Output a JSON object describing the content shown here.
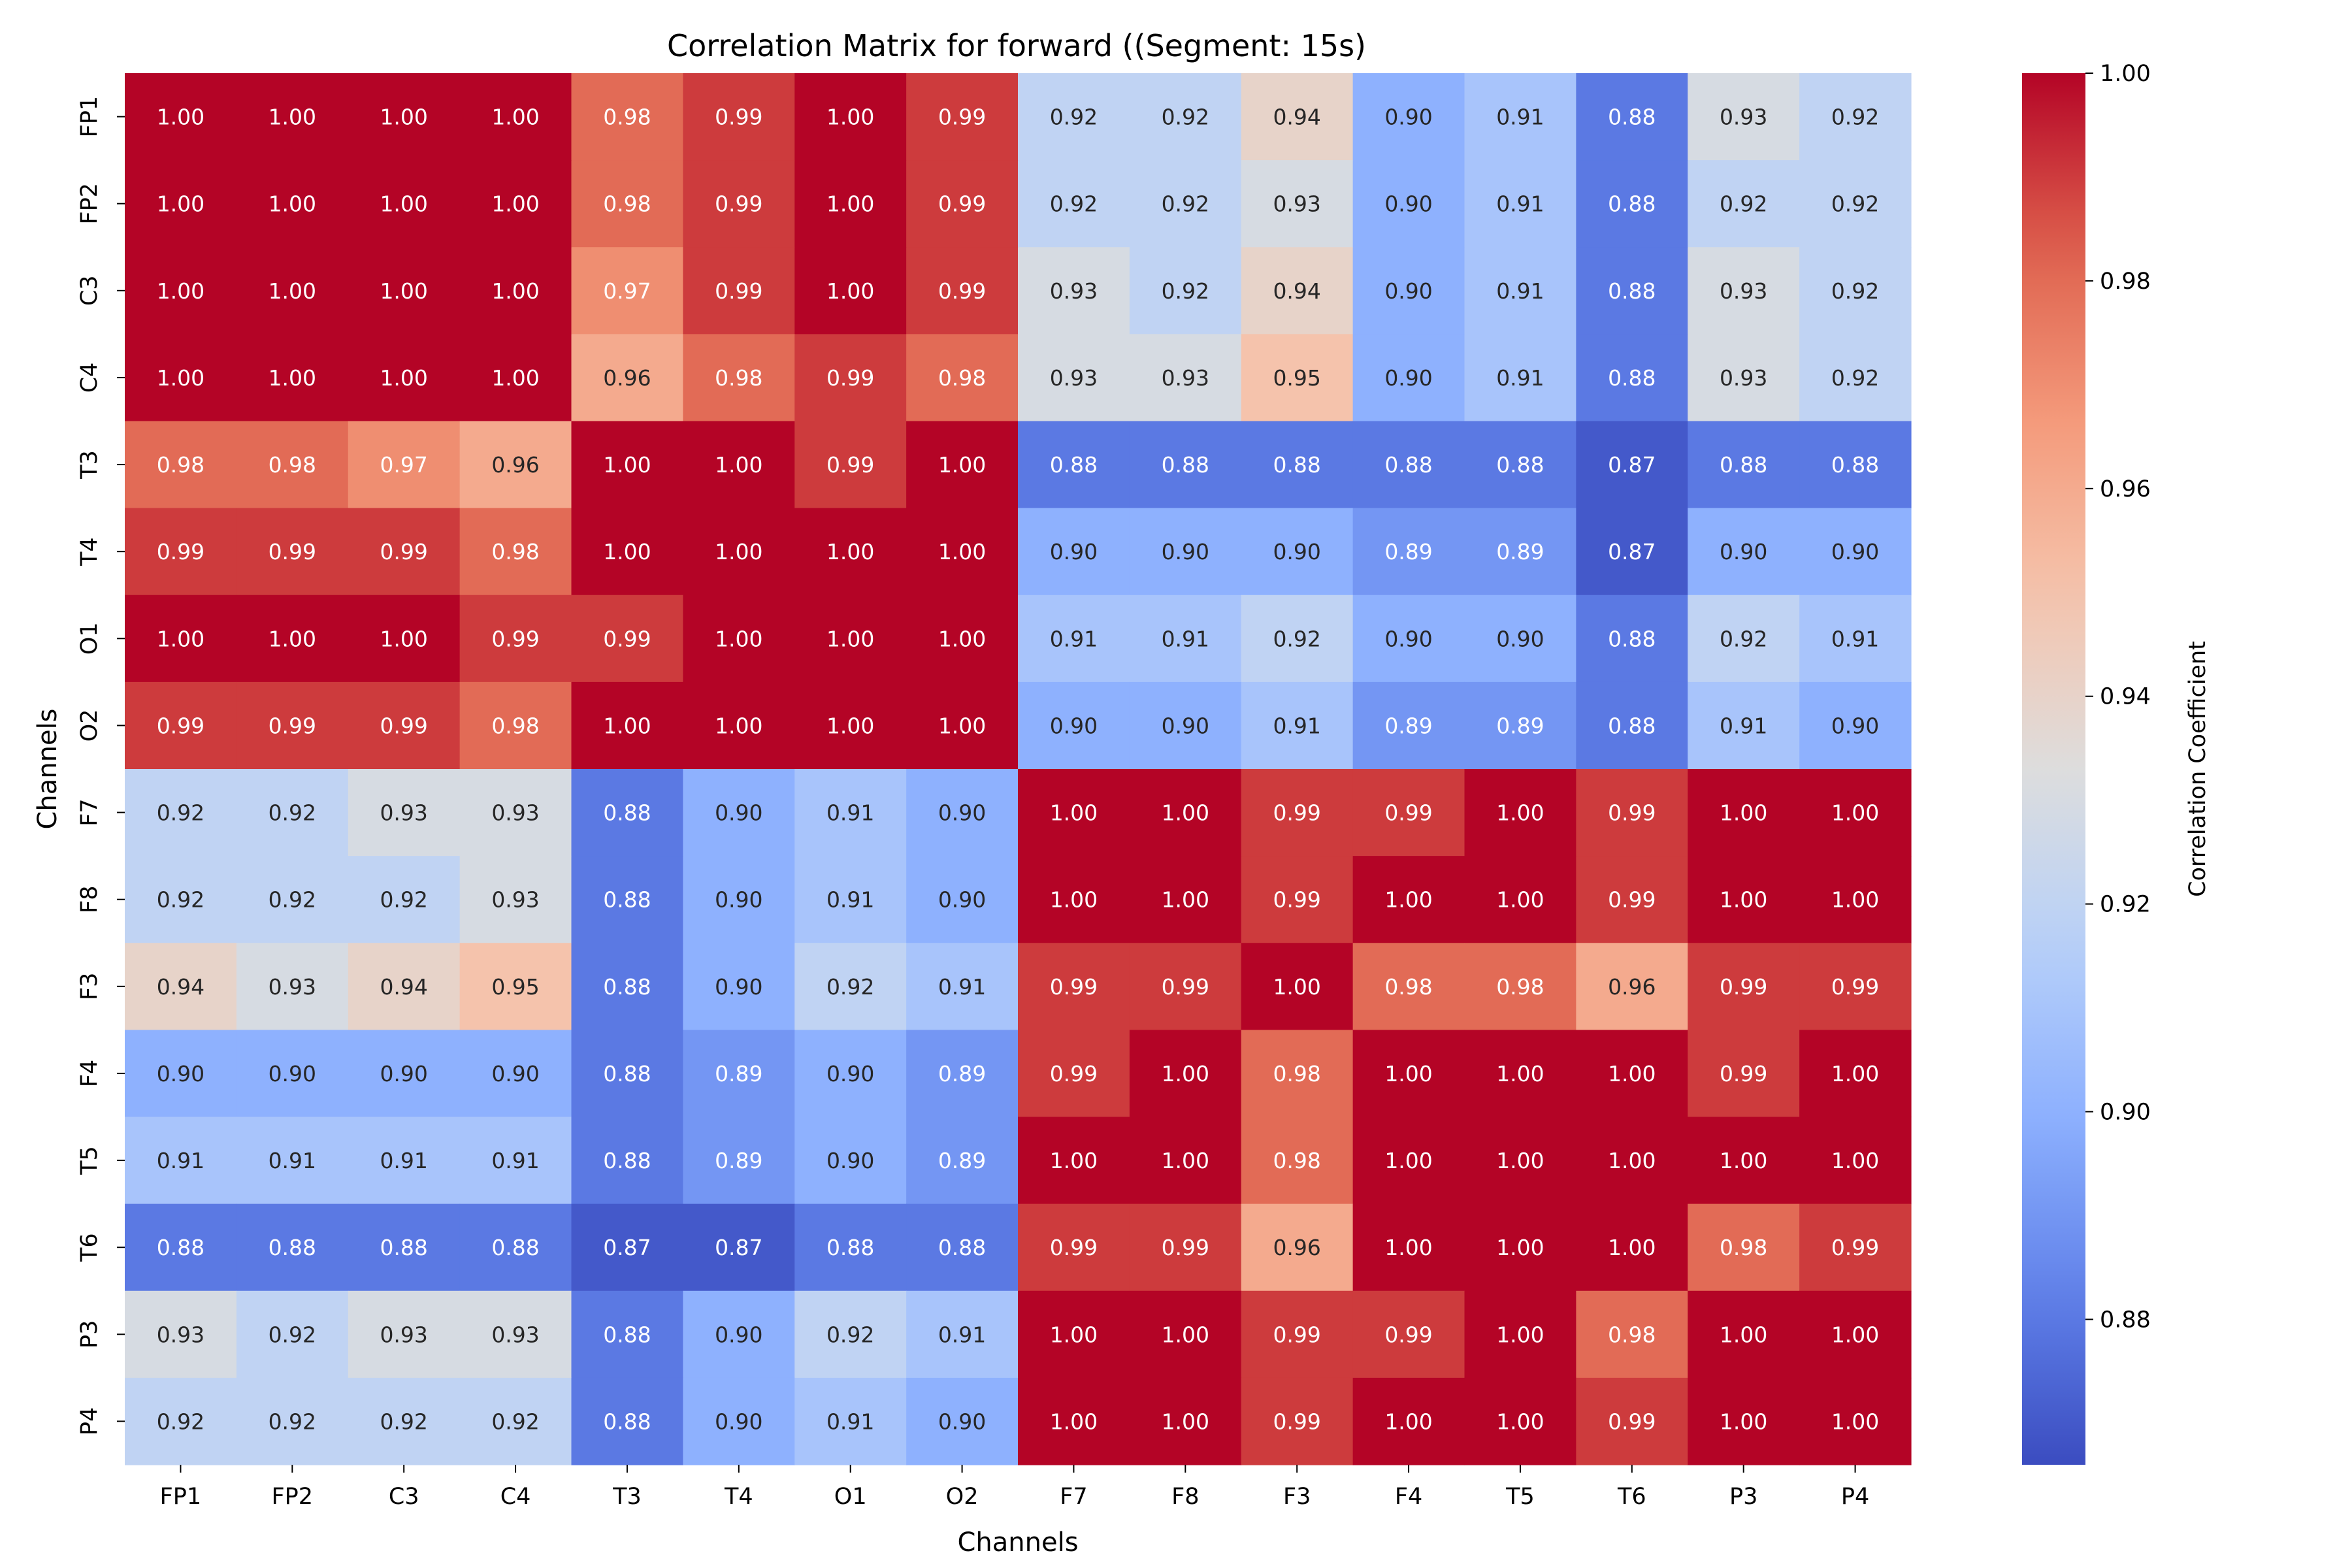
{
  "chart_data": {
    "type": "heatmap",
    "title": "Correlation Matrix for forward ((Segment: 15s)",
    "xlabel": "Channels",
    "ylabel": "Channels",
    "colorbar_label": "Correlation Coefficient",
    "colormap": "coolwarm",
    "color_range": [
      0.866,
      1.0
    ],
    "colorbar_ticks": [
      "0.88",
      "0.90",
      "0.92",
      "0.94",
      "0.96",
      "0.98",
      "1.00"
    ],
    "x_categories": [
      "FP1",
      "FP2",
      "C3",
      "C4",
      "T3",
      "T4",
      "O1",
      "O2",
      "F7",
      "F8",
      "F3",
      "F4",
      "T5",
      "T6",
      "P3",
      "P4"
    ],
    "y_categories": [
      "FP1",
      "FP2",
      "C3",
      "C4",
      "T3",
      "T4",
      "O1",
      "O2",
      "F7",
      "F8",
      "F3",
      "F4",
      "T5",
      "T6",
      "P3",
      "P4"
    ],
    "values": [
      [
        1.0,
        1.0,
        1.0,
        1.0,
        0.98,
        0.99,
        1.0,
        0.99,
        0.92,
        0.92,
        0.94,
        0.9,
        0.91,
        0.88,
        0.93,
        0.92
      ],
      [
        1.0,
        1.0,
        1.0,
        1.0,
        0.98,
        0.99,
        1.0,
        0.99,
        0.92,
        0.92,
        0.93,
        0.9,
        0.91,
        0.88,
        0.92,
        0.92
      ],
      [
        1.0,
        1.0,
        1.0,
        1.0,
        0.97,
        0.99,
        1.0,
        0.99,
        0.93,
        0.92,
        0.94,
        0.9,
        0.91,
        0.88,
        0.93,
        0.92
      ],
      [
        1.0,
        1.0,
        1.0,
        1.0,
        0.96,
        0.98,
        0.99,
        0.98,
        0.93,
        0.93,
        0.95,
        0.9,
        0.91,
        0.88,
        0.93,
        0.92
      ],
      [
        0.98,
        0.98,
        0.97,
        0.96,
        1.0,
        1.0,
        0.99,
        1.0,
        0.88,
        0.88,
        0.88,
        0.88,
        0.88,
        0.87,
        0.88,
        0.88
      ],
      [
        0.99,
        0.99,
        0.99,
        0.98,
        1.0,
        1.0,
        1.0,
        1.0,
        0.9,
        0.9,
        0.9,
        0.89,
        0.89,
        0.87,
        0.9,
        0.9
      ],
      [
        1.0,
        1.0,
        1.0,
        0.99,
        0.99,
        1.0,
        1.0,
        1.0,
        0.91,
        0.91,
        0.92,
        0.9,
        0.9,
        0.88,
        0.92,
        0.91
      ],
      [
        0.99,
        0.99,
        0.99,
        0.98,
        1.0,
        1.0,
        1.0,
        1.0,
        0.9,
        0.9,
        0.91,
        0.89,
        0.89,
        0.88,
        0.91,
        0.9
      ],
      [
        0.92,
        0.92,
        0.93,
        0.93,
        0.88,
        0.9,
        0.91,
        0.9,
        1.0,
        1.0,
        0.99,
        0.99,
        1.0,
        0.99,
        1.0,
        1.0
      ],
      [
        0.92,
        0.92,
        0.92,
        0.93,
        0.88,
        0.9,
        0.91,
        0.9,
        1.0,
        1.0,
        0.99,
        1.0,
        1.0,
        0.99,
        1.0,
        1.0
      ],
      [
        0.94,
        0.93,
        0.94,
        0.95,
        0.88,
        0.9,
        0.92,
        0.91,
        0.99,
        0.99,
        1.0,
        0.98,
        0.98,
        0.96,
        0.99,
        0.99
      ],
      [
        0.9,
        0.9,
        0.9,
        0.9,
        0.88,
        0.89,
        0.9,
        0.89,
        0.99,
        1.0,
        0.98,
        1.0,
        1.0,
        1.0,
        0.99,
        1.0
      ],
      [
        0.91,
        0.91,
        0.91,
        0.91,
        0.88,
        0.89,
        0.9,
        0.89,
        1.0,
        1.0,
        0.98,
        1.0,
        1.0,
        1.0,
        1.0,
        1.0
      ],
      [
        0.88,
        0.88,
        0.88,
        0.88,
        0.87,
        0.87,
        0.88,
        0.88,
        0.99,
        0.99,
        0.96,
        1.0,
        1.0,
        1.0,
        0.98,
        0.99
      ],
      [
        0.93,
        0.92,
        0.93,
        0.93,
        0.88,
        0.9,
        0.92,
        0.91,
        1.0,
        1.0,
        0.99,
        0.99,
        1.0,
        0.98,
        1.0,
        1.0
      ],
      [
        0.92,
        0.92,
        0.92,
        0.92,
        0.88,
        0.9,
        0.91,
        0.9,
        1.0,
        1.0,
        0.99,
        1.0,
        1.0,
        0.99,
        1.0,
        1.0
      ]
    ]
  }
}
